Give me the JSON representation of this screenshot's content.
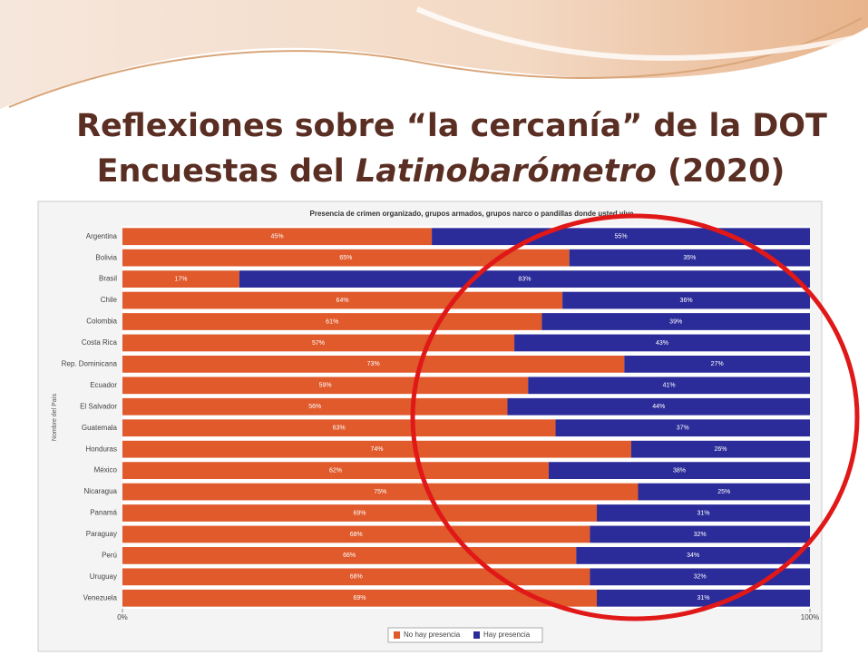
{
  "slide": {
    "title_line1": "Reflexiones sobre “la cercanía” de la DOT",
    "title_line2": [
      "Encuestas del ",
      "Latinobarómetro",
      " (2020)"
    ]
  },
  "chart_data": {
    "type": "stacked-barh",
    "title": "Presencia de crimen organizado, grupos armados, grupos narco o pandillas donde usted vive",
    "y_label": "Nombre del País",
    "categories": [
      "Argentina",
      "Bolivia",
      "Brasil",
      "Chile",
      "Colombia",
      "Costa Rica",
      "Rep. Dominicana",
      "Ecuador",
      "El Salvador",
      "Guatemala",
      "Honduras",
      "México",
      "Nicaragua",
      "Panamá",
      "Paraguay",
      "Perú",
      "Uruguay",
      "Venezuela"
    ],
    "series": [
      {
        "name": "No hay presencia",
        "color": "#e05a2b",
        "values": [
          45,
          65,
          17,
          64,
          61,
          57,
          73,
          59,
          56,
          63,
          74,
          62,
          75,
          69,
          68,
          66,
          68,
          69
        ],
        "value_labels": [
          "45%",
          "65%",
          "17%",
          "64%",
          "61%",
          "57%",
          "73%",
          "59%",
          "56%",
          "63%",
          "74%",
          "62%",
          "75%",
          "69%",
          "68%",
          "66%",
          "68%",
          "69%"
        ]
      },
      {
        "name": "Hay presencia",
        "color": "#2b2b9a",
        "values": [
          55,
          35,
          83,
          36,
          39,
          43,
          27,
          41,
          44,
          37,
          26,
          38,
          25,
          31,
          32,
          34,
          32,
          31
        ],
        "value_labels": [
          "55%",
          "35%",
          "83%",
          "36%",
          "39%",
          "43%",
          "27%",
          "41%",
          "44%",
          "37%",
          "26%",
          "38%",
          "25%",
          "31%",
          "32%",
          "34%",
          "32%",
          "31%"
        ]
      }
    ],
    "xlim": [
      0,
      100
    ],
    "xticks": [
      {
        "value": 0,
        "label": "0%"
      },
      {
        "value": 100,
        "label": "100%"
      }
    ],
    "legend": "bottom"
  }
}
